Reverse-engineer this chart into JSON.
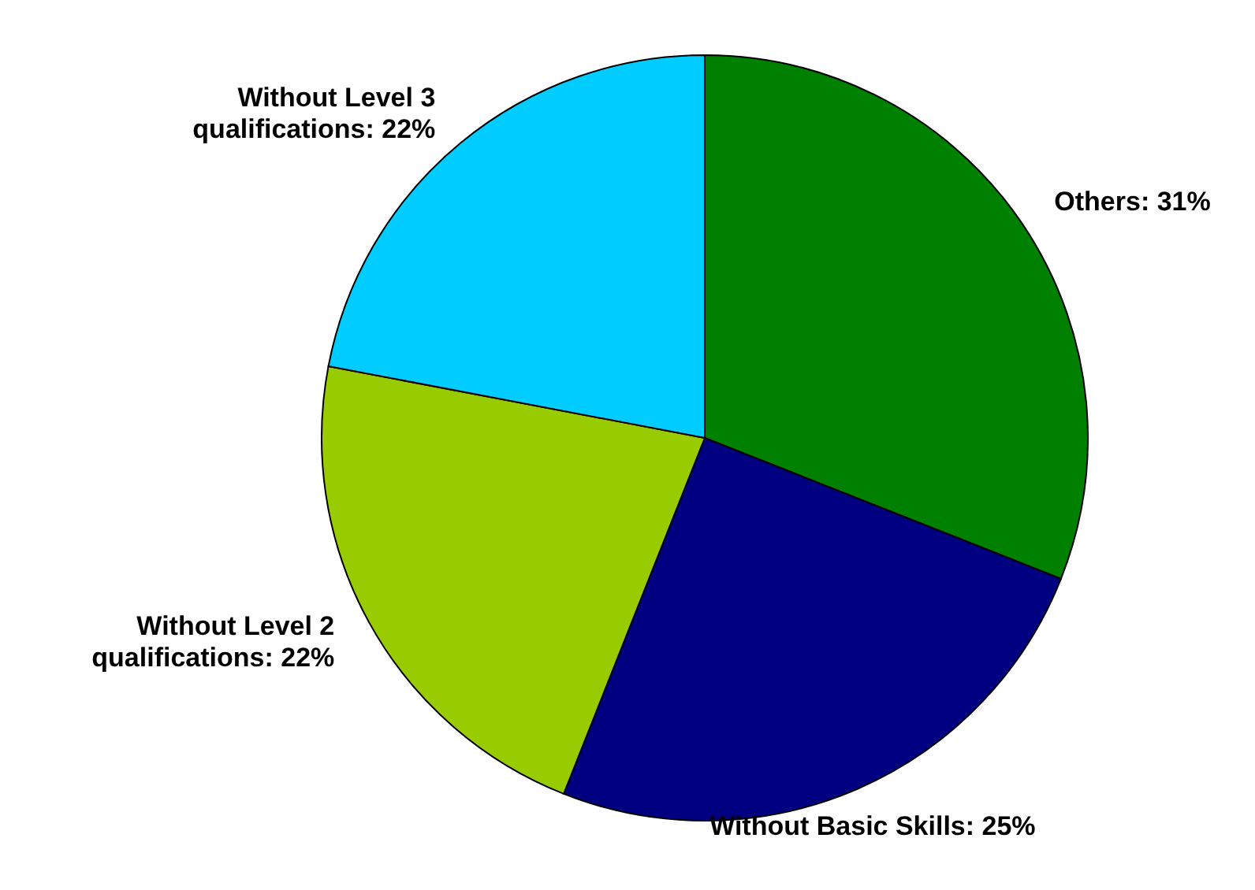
{
  "chart_data": {
    "type": "pie",
    "categories": [
      "Others",
      "Without Basic Skills",
      "Without Level 2 qualifications",
      "Without Level 3 qualifications"
    ],
    "values": [
      31,
      25,
      22,
      22
    ],
    "value_labels": [
      "31%",
      "25%",
      "22%",
      "22%"
    ],
    "colors": [
      "#008000",
      "#000080",
      "#99cc00",
      "#00ccff"
    ],
    "legend": false
  }
}
